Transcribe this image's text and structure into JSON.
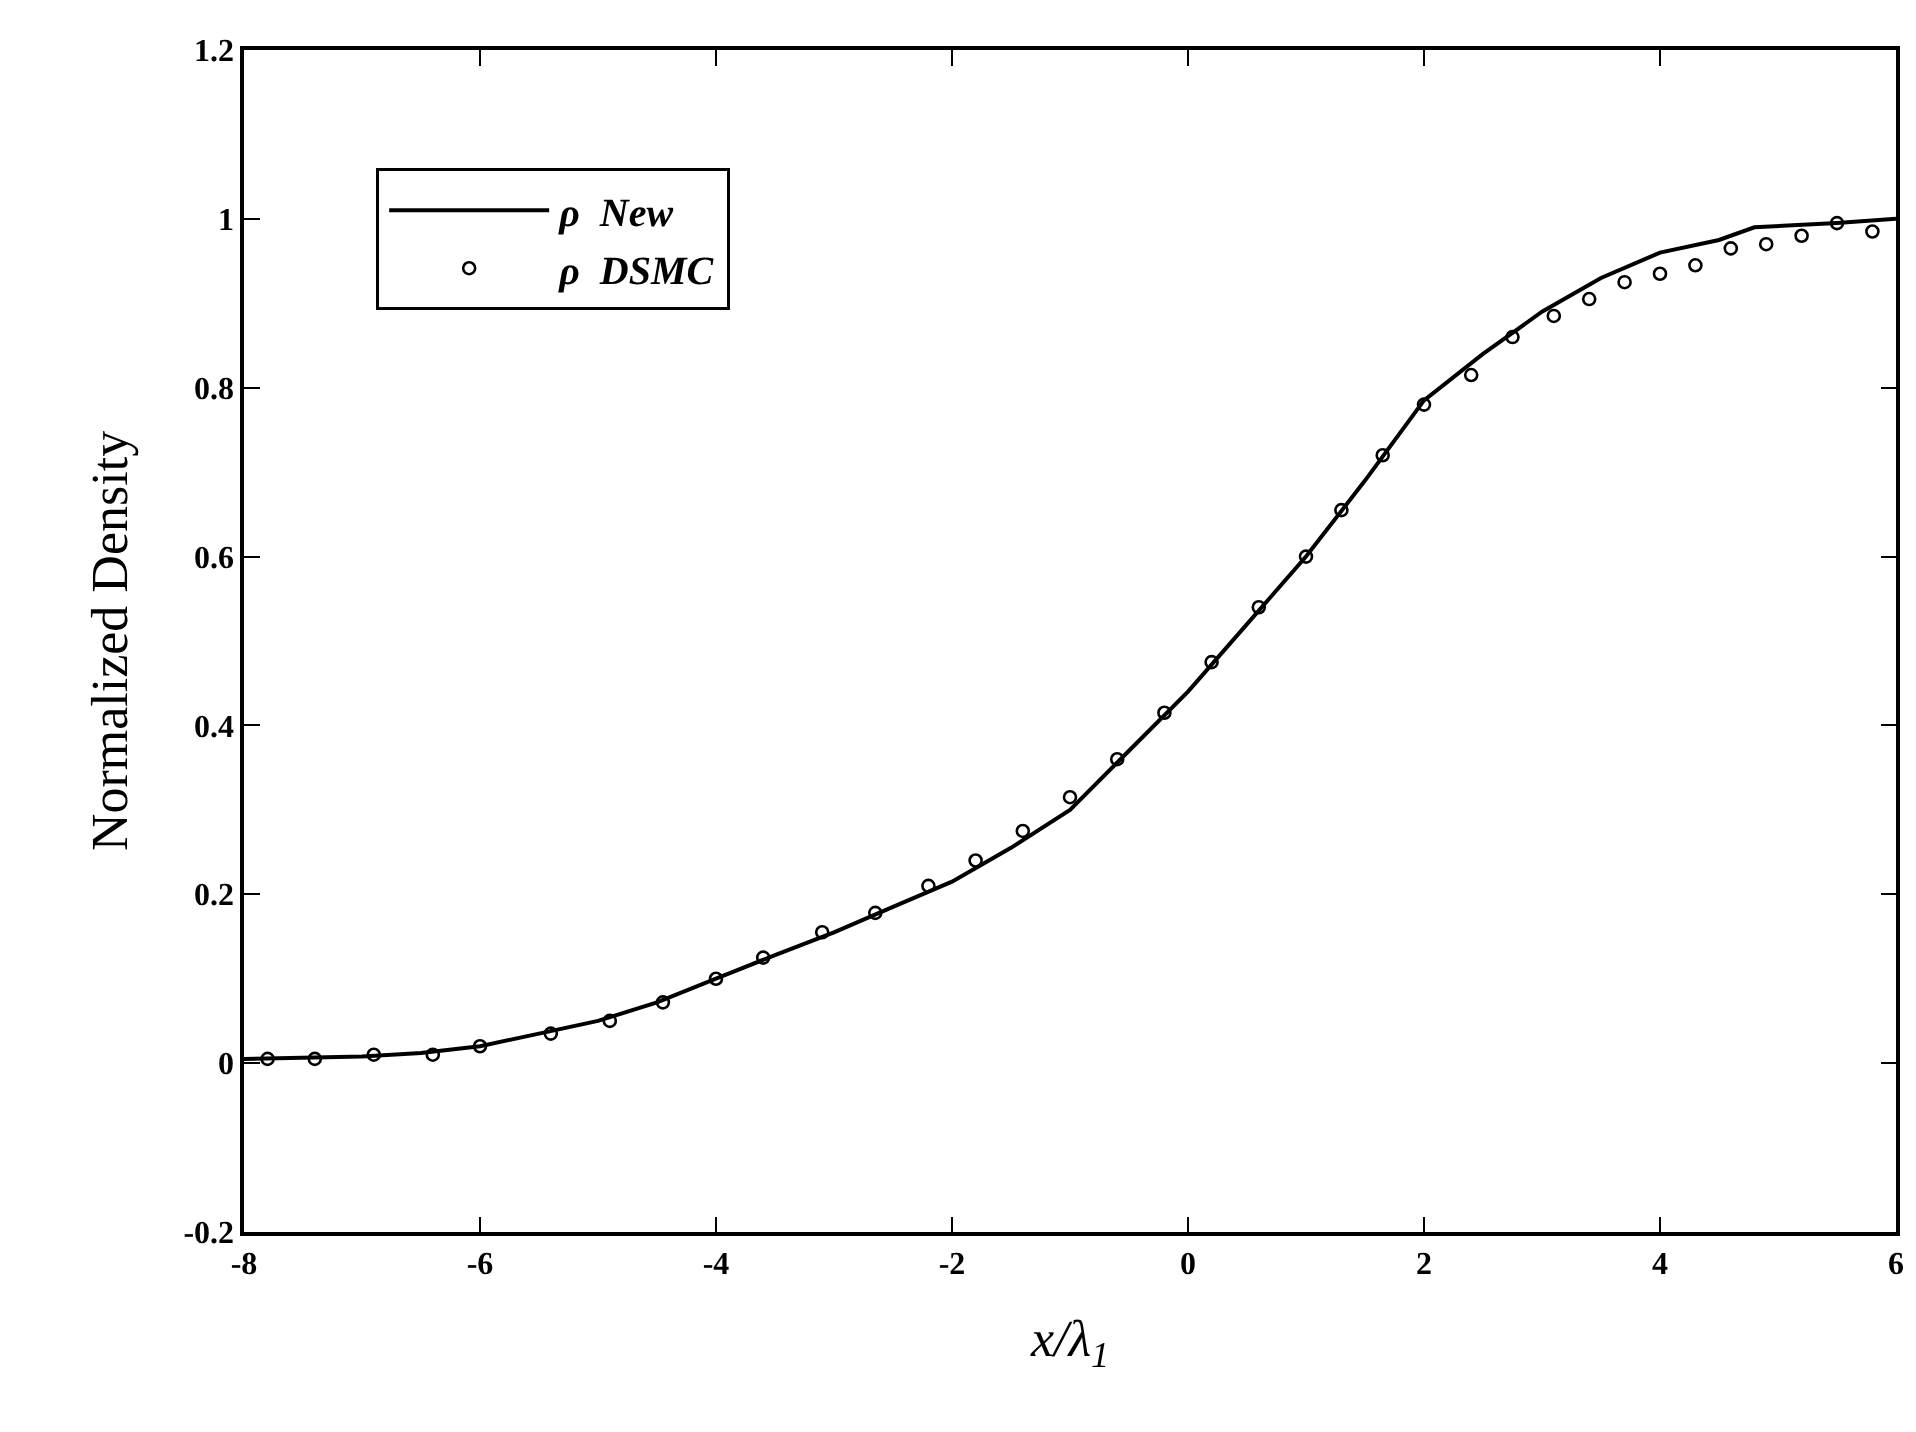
{
  "chart_data": {
    "type": "line",
    "xlabel": "x/λ$_{1}$",
    "ylabel": "Normalized Density",
    "xlim": [
      -8,
      6
    ],
    "xticks": [
      -8,
      -6,
      -4,
      -2,
      0,
      2,
      4,
      6
    ],
    "ylim": [
      -0.2,
      1.2
    ],
    "yticks": [
      -0.2,
      0,
      0.2,
      0.4,
      0.6,
      0.8,
      1,
      1.2
    ],
    "grid": false,
    "legend": "top left",
    "series": [
      {
        "name": "ρ  New",
        "type": "line",
        "color": "#000000",
        "line_style": "solid",
        "x": [
          -8,
          -7,
          -6.5,
          -6,
          -5.5,
          -5,
          -4.5,
          -4,
          -3.5,
          -3,
          -2.5,
          -2,
          -1.5,
          -1,
          -0.5,
          0,
          0.5,
          1,
          1.5,
          2,
          2.5,
          3,
          3.5,
          4,
          4.5,
          4.8,
          5.5,
          6
        ],
        "values": [
          0.005,
          0.008,
          0.012,
          0.02,
          0.035,
          0.05,
          0.072,
          0.1,
          0.128,
          0.155,
          0.185,
          0.215,
          0.255,
          0.3,
          0.37,
          0.44,
          0.52,
          0.6,
          0.69,
          0.785,
          0.84,
          0.89,
          0.93,
          0.96,
          0.975,
          0.99,
          0.995,
          1.0
        ]
      },
      {
        "name": "ρ  DSMC",
        "type": "scatter",
        "color": "#000000",
        "marker": "circle",
        "x": [
          -7.8,
          -7.4,
          -6.9,
          -6.4,
          -6.0,
          -5.4,
          -4.9,
          -4.45,
          -4.0,
          -3.6,
          -3.1,
          -2.65,
          -2.2,
          -1.8,
          -1.4,
          -1.0,
          -0.6,
          -0.2,
          0.2,
          0.6,
          1.0,
          1.3,
          1.65,
          2.0,
          2.4,
          2.75,
          3.1,
          3.4,
          3.7,
          4.0,
          4.3,
          4.6,
          4.9,
          5.2,
          5.5,
          5.8
        ],
        "values": [
          0.005,
          0.005,
          0.01,
          0.01,
          0.02,
          0.035,
          0.05,
          0.072,
          0.1,
          0.125,
          0.155,
          0.178,
          0.21,
          0.24,
          0.275,
          0.315,
          0.36,
          0.415,
          0.475,
          0.54,
          0.6,
          0.655,
          0.72,
          0.78,
          0.815,
          0.86,
          0.885,
          0.905,
          0.925,
          0.935,
          0.945,
          0.965,
          0.97,
          0.98,
          0.995,
          0.985
        ]
      }
    ]
  }
}
